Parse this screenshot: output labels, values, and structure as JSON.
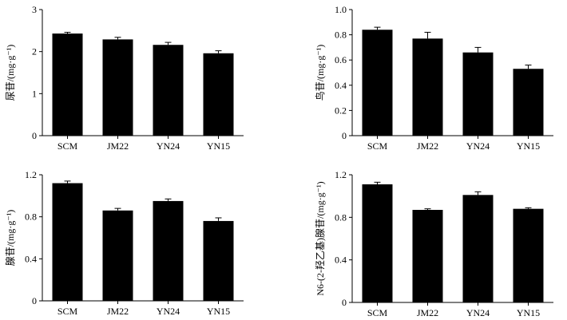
{
  "chart_data": [
    {
      "type": "bar",
      "categories": [
        "SCM",
        "JM22",
        "YN24",
        "YN15"
      ],
      "values": [
        2.43,
        2.29,
        2.16,
        1.96
      ],
      "errors": [
        0.03,
        0.05,
        0.06,
        0.06
      ],
      "ylabel": "尿苷/(mg·g⁻¹)",
      "ylim": [
        0,
        3
      ],
      "yticks": [
        "0",
        "1",
        "2",
        "3"
      ],
      "tick_values": [
        0,
        1,
        2,
        3
      ],
      "bar_color": "#000000"
    },
    {
      "type": "bar",
      "categories": [
        "SCM",
        "JM22",
        "YN24",
        "YN15"
      ],
      "values": [
        0.84,
        0.77,
        0.66,
        0.53
      ],
      "errors": [
        0.02,
        0.05,
        0.04,
        0.03
      ],
      "ylabel": "鸟苷/(mg·g⁻¹)",
      "ylim": [
        0,
        1.0
      ],
      "yticks": [
        "0",
        "0.2",
        "0.4",
        "0.6",
        "0.8",
        "1.0"
      ],
      "tick_values": [
        0,
        0.2,
        0.4,
        0.6,
        0.8,
        1.0
      ],
      "bar_color": "#000000"
    },
    {
      "type": "bar",
      "categories": [
        "SCM",
        "JM22",
        "YN24",
        "YN15"
      ],
      "values": [
        1.12,
        0.86,
        0.95,
        0.76
      ],
      "errors": [
        0.02,
        0.02,
        0.02,
        0.03
      ],
      "ylabel": "腺苷/(mg·g⁻¹)",
      "ylim": [
        0,
        1.2
      ],
      "yticks": [
        "0",
        "0.4",
        "0.8",
        "1.2"
      ],
      "tick_values": [
        0,
        0.4,
        0.8,
        1.2
      ],
      "bar_color": "#000000"
    },
    {
      "type": "bar",
      "categories": [
        "SCM",
        "JM22",
        "YN24",
        "YN15"
      ],
      "values": [
        1.11,
        0.87,
        1.01,
        0.88
      ],
      "errors": [
        0.02,
        0.01,
        0.03,
        0.01
      ],
      "ylabel": "N6-(2-羟乙基)腺苷/(mg·g⁻¹)",
      "ylim": [
        0,
        1.2
      ],
      "yticks": [
        "0",
        "0.4",
        "0.8",
        "1.2"
      ],
      "tick_values": [
        0,
        0.4,
        0.8,
        1.2
      ],
      "bar_color": "#000000"
    }
  ]
}
